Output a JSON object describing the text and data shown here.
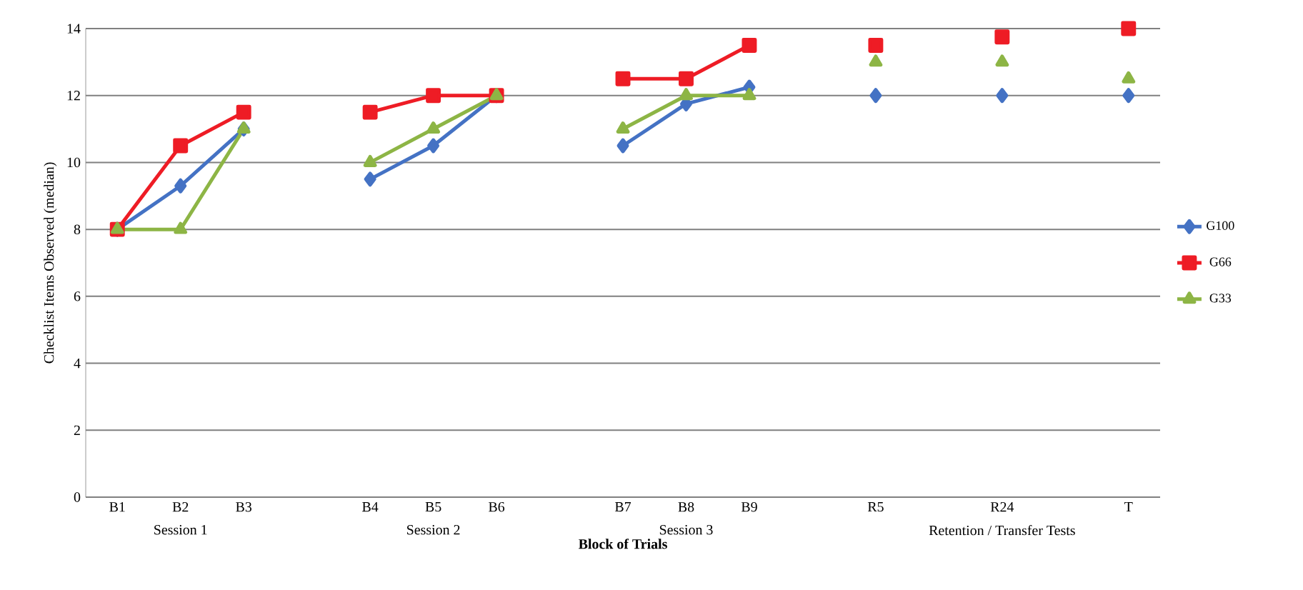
{
  "chart_data": {
    "type": "line",
    "xlabel": "Block of Trials",
    "ylabel": "Checklist Items Observed (median)",
    "categories": [
      "B1",
      "B2",
      "B3",
      null,
      "B4",
      "B5",
      "B6",
      null,
      "B7",
      "B8",
      "B9",
      null,
      "R5",
      null,
      "R24",
      null,
      "T"
    ],
    "series": [
      {
        "name": "G100",
        "color": "#4472c4",
        "marker": "diamond",
        "values": [
          8,
          9.3,
          11,
          null,
          9.5,
          10.5,
          12,
          null,
          10.5,
          11.75,
          12.25,
          null,
          12,
          null,
          12,
          null,
          12
        ]
      },
      {
        "name": "G66",
        "color": "#ee1c25",
        "marker": "square",
        "values": [
          8,
          10.5,
          11.5,
          null,
          11.5,
          12,
          12,
          null,
          12.5,
          12.5,
          13.5,
          null,
          13.5,
          null,
          13.75,
          null,
          14
        ]
      },
      {
        "name": "G33",
        "color": "#8db545",
        "marker": "triangle",
        "values": [
          8,
          8,
          11,
          null,
          10,
          11,
          12,
          null,
          11,
          12,
          12,
          null,
          13,
          null,
          13,
          null,
          12.5
        ]
      }
    ],
    "ylim": [
      0,
      14
    ],
    "yticks": [
      0,
      2,
      4,
      6,
      8,
      10,
      12,
      14
    ],
    "grid": "y",
    "legend": "right",
    "line_style": "solid",
    "annotations": [
      "Session 1",
      "Session 2",
      "Session 3",
      "Retention / Transfer Tests"
    ]
  }
}
